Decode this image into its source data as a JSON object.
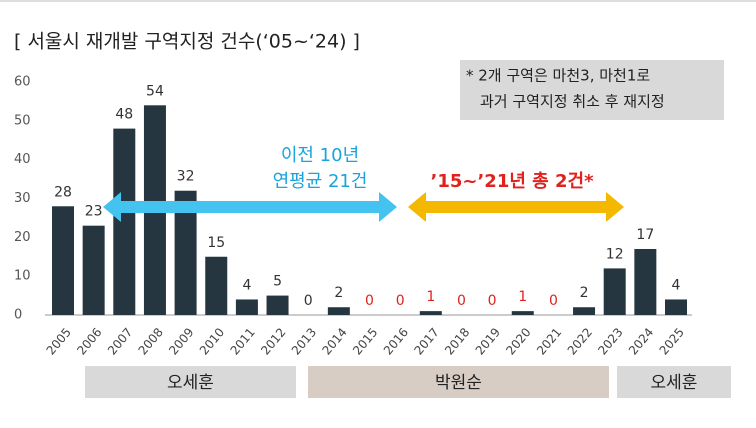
{
  "chart_data": {
    "type": "bar",
    "title": "[ 서울시 재개발 구역지정 건수(‘05~‘24) ]",
    "categories": [
      "2005",
      "2006",
      "2007",
      "2008",
      "2009",
      "2010",
      "2011",
      "2012",
      "2013",
      "2014",
      "2015",
      "2016",
      "2017",
      "2018",
      "2019",
      "2020",
      "2021",
      "2022",
      "2023",
      "2024",
      "2025"
    ],
    "values": [
      28,
      23,
      48,
      54,
      32,
      15,
      4,
      5,
      0,
      2,
      0,
      0,
      1,
      0,
      0,
      1,
      0,
      2,
      12,
      17,
      4
    ],
    "color": "#263640",
    "label_colors": [
      "#333",
      "#333",
      "#333",
      "#333",
      "#333",
      "#333",
      "#333",
      "#333",
      "#333",
      "#333",
      "#e0221e",
      "#e0221e",
      "#e0221e",
      "#e0221e",
      "#e0221e",
      "#e0221e",
      "#e0221e",
      "#333",
      "#333",
      "#333",
      "#333"
    ],
    "ylim": [
      0,
      60
    ],
    "yticks": [
      0,
      10,
      20,
      30,
      40,
      50,
      60
    ],
    "note": [
      "* 2개 구역은 마천3, 마천1로",
      "과거 구역지정 취소 후 재지정"
    ],
    "annotations": [
      {
        "lines": [
          "이전 10년",
          "연평균 21건"
        ],
        "color": "#1aa3dc",
        "arrow_color": "#45c3f0"
      },
      {
        "lines": [
          "’15~’21년 총 2건*"
        ],
        "color": "#e0221e",
        "arrow_color": "#f5b800"
      }
    ],
    "periods": [
      {
        "label": "오세훈",
        "color": "#d9d9d9"
      },
      {
        "label": "박원순",
        "color": "#d8cdc5"
      },
      {
        "label": "오세훈",
        "color": "#d9d9d9"
      }
    ]
  }
}
